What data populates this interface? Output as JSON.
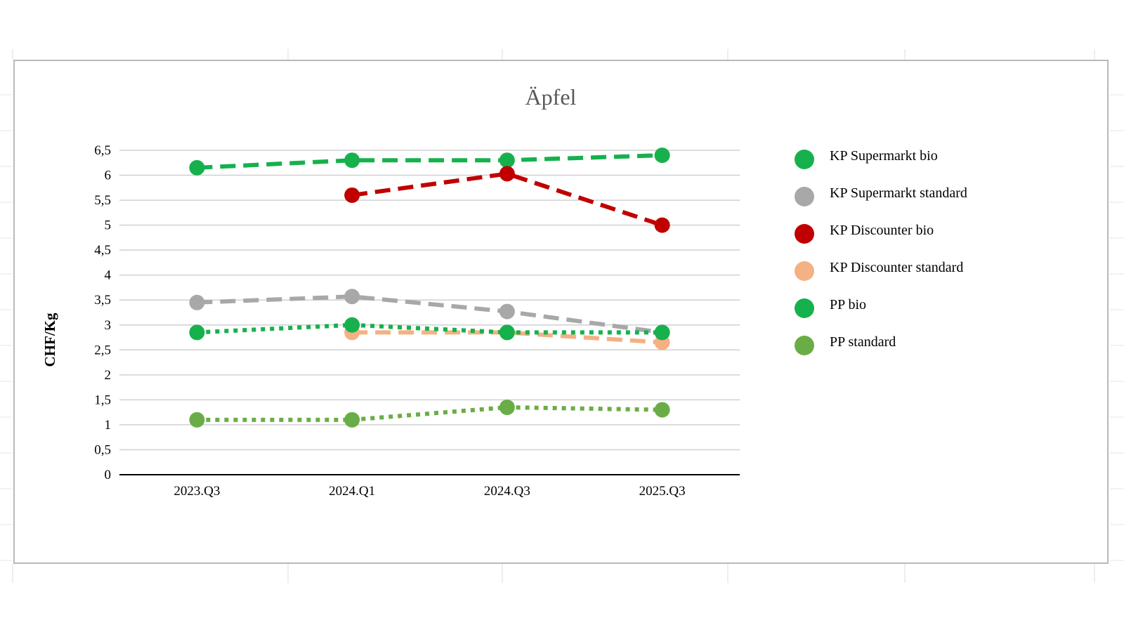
{
  "chart_data": {
    "type": "line",
    "title": "Äpfel",
    "xlabel": "",
    "ylabel": "CHF/Kg",
    "categories": [
      "2023.Q3",
      "2024.Q1",
      "2024.Q3",
      "2025.Q3"
    ],
    "ylim": [
      0,
      6.5
    ],
    "yticks": [
      "0",
      "0,5",
      "1",
      "1,5",
      "2",
      "2,5",
      "3",
      "3,5",
      "4",
      "4,5",
      "5",
      "5,5",
      "6",
      "6,5"
    ],
    "grid": true,
    "legend_position": "right",
    "series": [
      {
        "name": "KP Supermarkt bio",
        "values": [
          6.15,
          6.3,
          6.3,
          6.4
        ],
        "color": "#16b14c",
        "style": "dashed"
      },
      {
        "name": "KP Supermarkt standard",
        "values": [
          3.45,
          3.57,
          3.27,
          2.85
        ],
        "color": "#a8a8a8",
        "style": "dashed"
      },
      {
        "name": "KP Discounter bio",
        "values": [
          null,
          5.6,
          6.03,
          5.0
        ],
        "color": "#c00000",
        "style": "dashed"
      },
      {
        "name": "KP Discounter standard",
        "values": [
          null,
          2.85,
          2.85,
          2.65
        ],
        "color": "#f4b183",
        "style": "dashed"
      },
      {
        "name": "PP bio",
        "values": [
          2.85,
          3.0,
          2.85,
          2.85
        ],
        "color": "#16b14c",
        "style": "dotted"
      },
      {
        "name": "PP standard",
        "values": [
          1.1,
          1.1,
          1.35,
          1.3
        ],
        "color": "#6aad47",
        "style": "dotted"
      }
    ]
  }
}
